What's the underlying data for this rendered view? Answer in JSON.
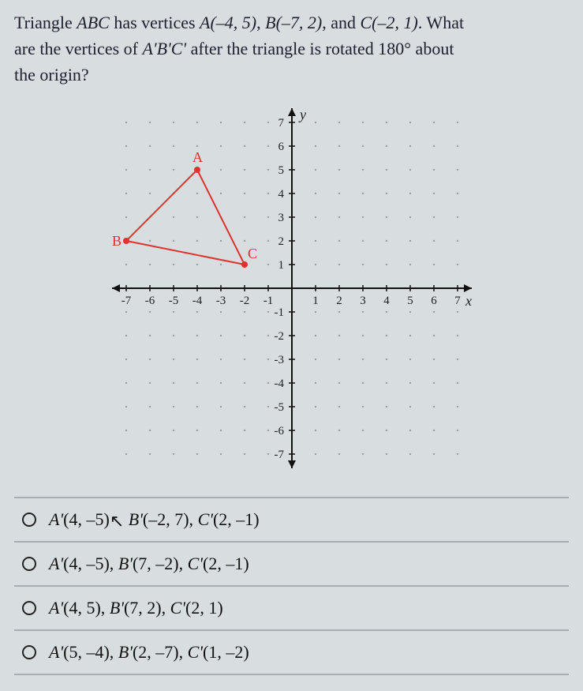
{
  "question": {
    "line1_part1": "Triangle ",
    "line1_abc": "ABC",
    "line1_part2": " has vertices ",
    "vA": "A(–4, 5)",
    "comma1": ", ",
    "vB": "B(–7, 2)",
    "comma2": ", and ",
    "vC": "C(–2, 1)",
    "line1_end": ". What",
    "line2_part1": "are the vertices of ",
    "aprime": "A'B'C'",
    "line2_part2": " after the triangle is rotated 180° about",
    "line3": "the origin?"
  },
  "chart": {
    "type": "scatter-line",
    "xlim": [
      -7,
      7
    ],
    "ylim": [
      -7,
      7
    ],
    "xtick_step": 1,
    "ytick_step": 1,
    "x_label": "x",
    "y_label": "y",
    "axis_color": "#111111",
    "grid_dot_color": "#6d6d70",
    "background_color": "#d8dde0",
    "triangle": {
      "points": {
        "A": {
          "x": -4,
          "y": 5,
          "label": "A",
          "label_color": "#d9302c"
        },
        "B": {
          "x": -7,
          "y": 2,
          "label": "B",
          "label_color": "#d9302c"
        },
        "C": {
          "x": -2,
          "y": 1,
          "label": "C",
          "label_color": "#d9302c"
        }
      },
      "stroke": "#e1322d",
      "stroke_width": 2
    },
    "tick_numbers_neg_x": [
      "-7",
      "-6",
      "-5",
      "-4",
      "-3",
      "-2",
      "-1"
    ],
    "tick_numbers_pos_x": [
      "1",
      "2",
      "3",
      "4",
      "5",
      "6",
      "7"
    ],
    "tick_numbers_neg_y": [
      "-1",
      "-2",
      "-3",
      "-4",
      "-5",
      "-6",
      "-7"
    ],
    "tick_numbers_pos_y": [
      "1",
      "2",
      "3",
      "4",
      "5",
      "6",
      "7"
    ]
  },
  "answers": [
    {
      "text": "A'(4, –5), B'(–2, 7), C'(2, –1)",
      "has_cursor": true
    },
    {
      "text": "A'(4, –5), B'(7, –2), C'(2, –1)",
      "has_cursor": false
    },
    {
      "text": "A'(4, 5), B'(7, 2), C'(2, 1)",
      "has_cursor": false
    },
    {
      "text": "A'(5, –4), B'(2, –7), C'(1, –2)",
      "has_cursor": false
    }
  ],
  "colors": {
    "page_bg": "#d8dde0",
    "text": "#1a1a2a",
    "divider": "#a8adb4",
    "triangle": "#e1322d"
  }
}
